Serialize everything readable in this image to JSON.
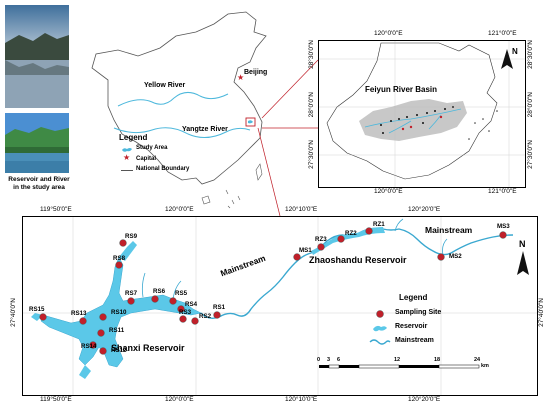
{
  "photos": {
    "caption_line1": "Reservoir and River",
    "caption_line2": "in the study area"
  },
  "china_map": {
    "capital": "Beijing",
    "yellow_river": "Yellow River",
    "yangtze_river": "Yangtze River",
    "legend": {
      "title": "Legend",
      "study_area": "Study Area",
      "capital": "Capital",
      "boundary": "National Boundary"
    }
  },
  "basin_map": {
    "title": "Feiyun River Basin",
    "x_ticks": [
      "120°0'0\"E",
      "121°0'0\"E"
    ],
    "y_ticks": [
      "28°30'0\"N",
      "28°0'0\"N",
      "27°30'0\"N"
    ],
    "north": "N"
  },
  "main_map": {
    "x_ticks": [
      "119°50'0\"E",
      "120°0'0\"E",
      "120°10'0\"E",
      "120°20'0\"E"
    ],
    "y_tick": "27°40'0\"N",
    "north": "N",
    "labels": {
      "shanxi": "Shanxi Reservoir",
      "zhaoshandu": "Zhaoshandu Reservoir",
      "mainstream1": "Mainstream",
      "mainstream2": "Mainstream"
    },
    "sites": [
      {
        "id": "RS9"
      },
      {
        "id": "RS8"
      },
      {
        "id": "RS7"
      },
      {
        "id": "RS6"
      },
      {
        "id": "RS5"
      },
      {
        "id": "RS4"
      },
      {
        "id": "RS3"
      },
      {
        "id": "RS2"
      },
      {
        "id": "RS1"
      },
      {
        "id": "RS15"
      },
      {
        "id": "RS13"
      },
      {
        "id": "RS10"
      },
      {
        "id": "RS11"
      },
      {
        "id": "RS14"
      },
      {
        "id": "RS12"
      },
      {
        "id": "MS1"
      },
      {
        "id": "RZ3"
      },
      {
        "id": "RZ2"
      },
      {
        "id": "RZ1"
      },
      {
        "id": "MS2"
      },
      {
        "id": "MS3"
      }
    ],
    "legend": {
      "title": "Legend",
      "site": "Sampling Site",
      "reservoir": "Reservoir",
      "mainstream": "Mainstream"
    },
    "scale": {
      "ticks": [
        "0",
        "3",
        "6",
        "12",
        "18",
        "24"
      ],
      "unit": "km"
    }
  },
  "colors": {
    "water": "#5bc8e8",
    "site": "#c0202a",
    "basin": "#c8c8c8",
    "land": "#ffffff"
  }
}
